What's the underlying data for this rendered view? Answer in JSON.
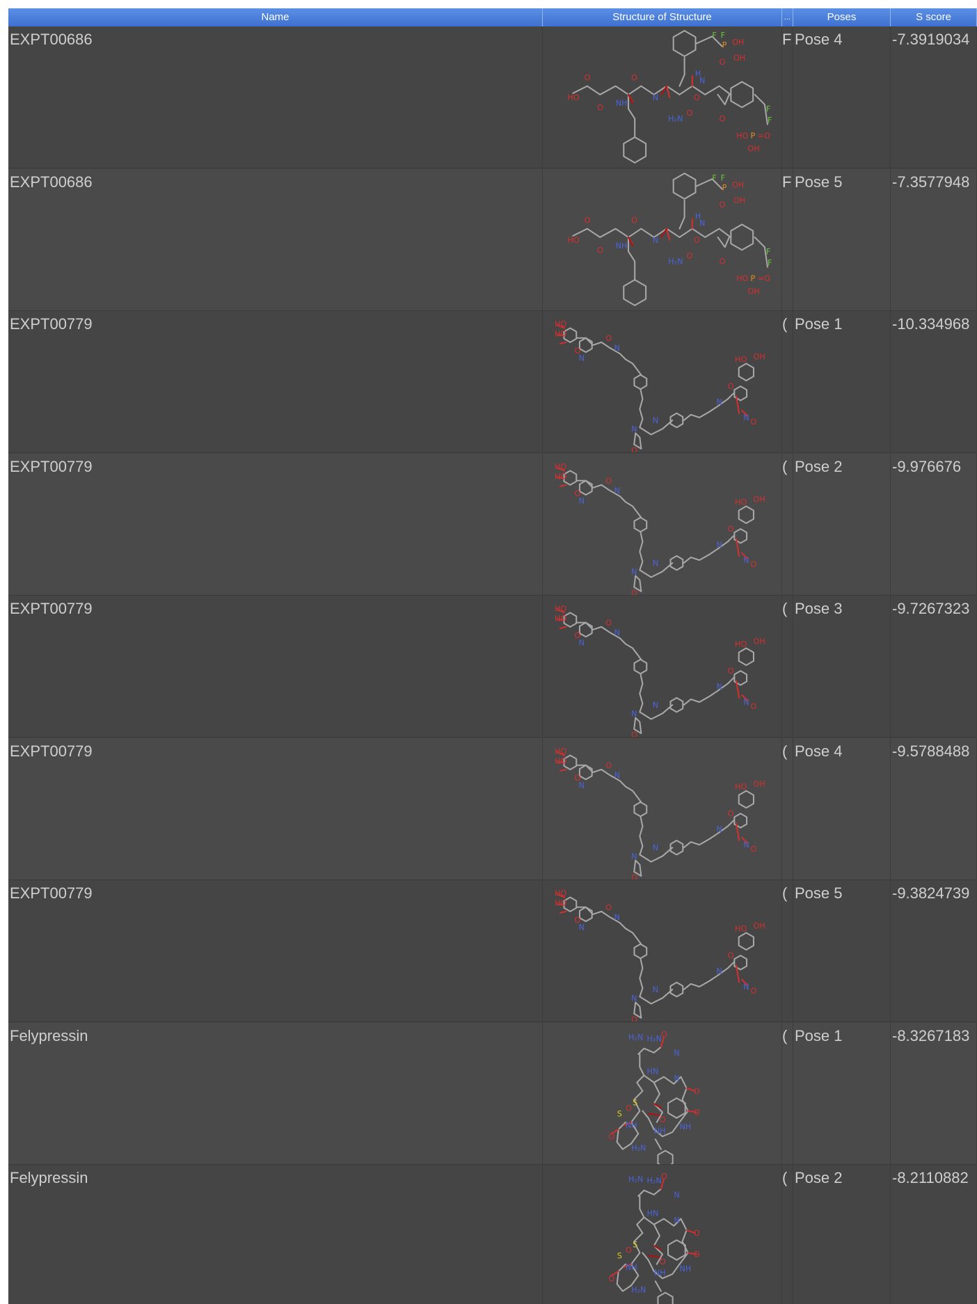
{
  "columns": {
    "name": "Name",
    "structure": "Structure of Structure",
    "dots": "...",
    "poses": "Poses",
    "score": "S score"
  },
  "rows": [
    {
      "name": "EXPT00686",
      "trunc": "F",
      "pose": "Pose 4",
      "score": "-7.3919034",
      "structure": "phosphopeptide"
    },
    {
      "name": "EXPT00686",
      "trunc": "F",
      "pose": "Pose 5",
      "score": "-7.3577948",
      "structure": "phosphopeptide"
    },
    {
      "name": "EXPT00779",
      "trunc": "(",
      "pose": "Pose 1",
      "score": "-10.334968",
      "structure": "bis-glycoside-linker"
    },
    {
      "name": "EXPT00779",
      "trunc": "(",
      "pose": "Pose 2",
      "score": "-9.976676",
      "structure": "bis-glycoside-linker"
    },
    {
      "name": "EXPT00779",
      "trunc": "(",
      "pose": "Pose 3",
      "score": "-9.7267323",
      "structure": "bis-glycoside-linker"
    },
    {
      "name": "EXPT00779",
      "trunc": "(",
      "pose": "Pose 4",
      "score": "-9.5788488",
      "structure": "bis-glycoside-linker"
    },
    {
      "name": "EXPT00779",
      "trunc": "(",
      "pose": "Pose 5",
      "score": "-9.3824739",
      "structure": "bis-glycoside-linker"
    },
    {
      "name": "Felypressin",
      "trunc": "(",
      "pose": "Pose 1",
      "score": "-8.3267183",
      "structure": "cyclic-peptide"
    },
    {
      "name": "Felypressin",
      "trunc": "(",
      "pose": "Pose 2",
      "score": "-8.2110882",
      "structure": "cyclic-peptide"
    }
  ],
  "colors": {
    "header": "#4a80dc",
    "row_bg": "#454545",
    "text": "#cfcfcf",
    "bond": "#a8a8a8",
    "oxygen": "#d23030",
    "nitrogen": "#4a64d8",
    "phosphorus": "#e08a20",
    "fluorine": "#6cc040",
    "sulfur": "#d8c820"
  }
}
